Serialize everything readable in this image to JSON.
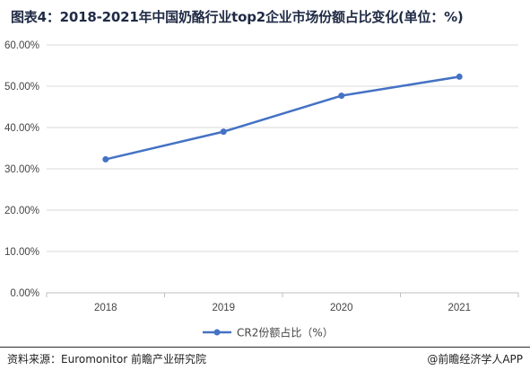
{
  "chart_data": {
    "type": "line",
    "title": "图表4：2018-2021年中国奶酪行业top2企业市场份额占比变化(单位：%)",
    "categories": [
      "2018",
      "2019",
      "2020",
      "2021"
    ],
    "series": [
      {
        "name": "CR2份额占比（%）",
        "values": [
          32.3,
          39.0,
          47.7,
          52.3
        ],
        "color": "#4472c4"
      }
    ],
    "ylim": [
      0,
      60
    ],
    "yticks": [
      "0.00%",
      "10.00%",
      "20.00%",
      "30.00%",
      "40.00%",
      "50.00%",
      "60.00%"
    ],
    "grid": true,
    "legend_position": "bottom"
  },
  "footer": {
    "source": "资料来源：Euromonitor 前瞻产业研究院",
    "credit": "@前瞻经济学人APP"
  }
}
